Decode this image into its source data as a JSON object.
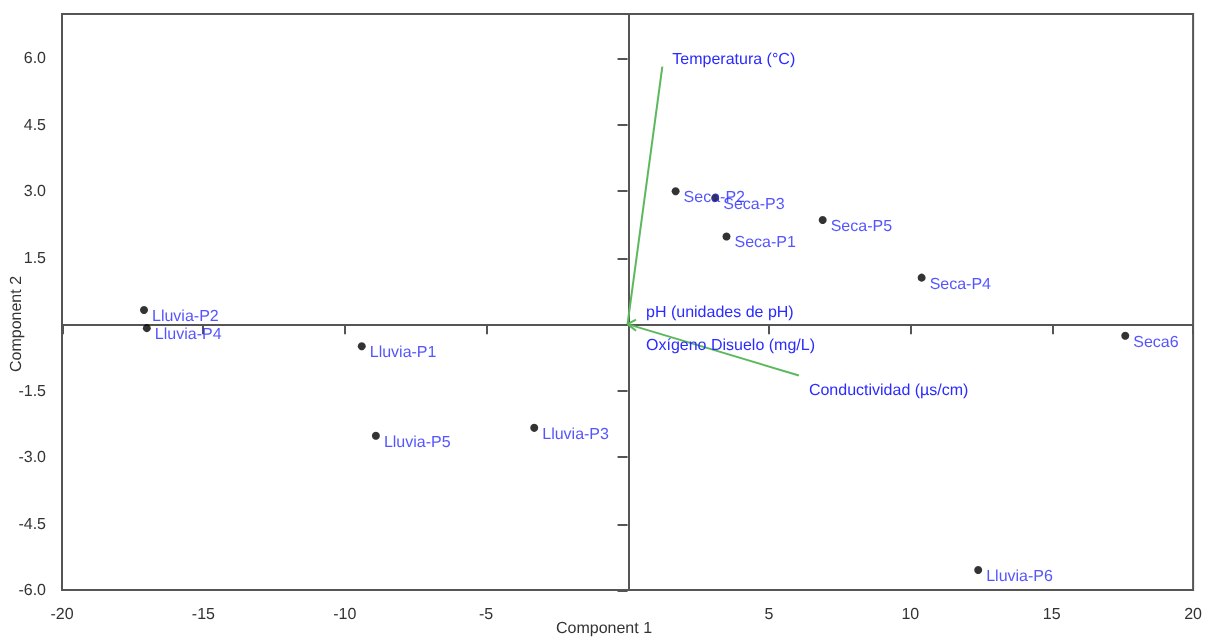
{
  "chart_data": {
    "type": "scatter",
    "xlabel": "Component 1",
    "ylabel": "Component 2",
    "xlim": [
      -20,
      20
    ],
    "ylim": [
      -6,
      7
    ],
    "xticks": [
      -20,
      -15,
      -10,
      -5,
      5,
      10,
      15,
      20
    ],
    "yticks": [
      {
        "value": -6,
        "label": "-6.0"
      },
      -4.5,
      {
        "value": -3,
        "label": "-3.0"
      },
      -1.5,
      1.5,
      {
        "value": 3,
        "label": "3.0"
      },
      4.5,
      {
        "value": 6,
        "label": "6.0"
      }
    ],
    "grid": false,
    "legend": false,
    "series": [
      {
        "color": "#000000",
        "marker": "circle",
        "x": [
          -17.1,
          -17.0,
          -9.4,
          -8.9,
          -3.3,
          1.7,
          3.1,
          3.5,
          6.9,
          10.4,
          17.6,
          12.4
        ],
        "values": [
          0.32,
          -0.09,
          -0.5,
          -2.52,
          -2.34,
          3.0,
          2.85,
          1.98,
          2.35,
          1.05,
          -0.26,
          -5.55
        ],
        "value_labels": [
          "Lluvia-P2",
          "Lluvia-P4",
          "Lluvia-P1",
          "Lluvia-P5",
          "Lluvia-P3",
          "Seca-P2",
          "Seca-P3",
          "Seca-P1",
          "Seca-P5",
          "Seca-P4",
          "Seca6",
          "Lluvia-P6"
        ]
      },
      {
        "type": "line",
        "marker": "none",
        "name": "Temperatura (°C)",
        "color": "#5cb85c",
        "x": [
          0,
          1.23
        ],
        "values": [
          0,
          5.81
        ]
      },
      {
        "type": "line",
        "marker": "none",
        "name": "pH (unidades de pH)",
        "color": "#5cb85c",
        "x": [
          0,
          0.3
        ],
        "values": [
          0,
          0.1
        ]
      },
      {
        "type": "line",
        "marker": "none",
        "name": "Oxígeno Disuelo (mg/L)",
        "color": "#5cb85c",
        "x": [
          0,
          0.3
        ],
        "values": [
          0,
          -0.15
        ]
      },
      {
        "type": "line",
        "marker": "none",
        "name": "Conductividad (µs/cm)",
        "color": "#5cb85c",
        "x": [
          0,
          6.06
        ],
        "values": [
          0,
          -1.16
        ]
      }
    ]
  }
}
